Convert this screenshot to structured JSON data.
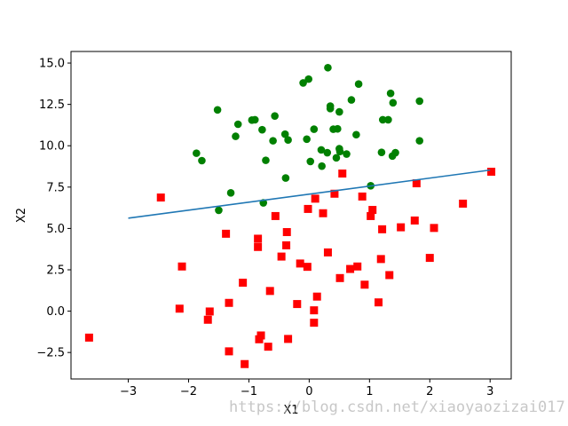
{
  "chart_data": {
    "type": "scatter",
    "xlabel": "X1",
    "ylabel": "X2",
    "xlim": [
      -3.95,
      3.35
    ],
    "ylim": [
      -4.1,
      15.7
    ],
    "xticks": [
      -3,
      -2,
      -1,
      0,
      1,
      2,
      3
    ],
    "xtick_labels": [
      "−3",
      "−2",
      "−1",
      "0",
      "1",
      "2",
      "3"
    ],
    "yticks": [
      -2.5,
      0.0,
      2.5,
      5.0,
      7.5,
      10.0,
      12.5,
      15.0
    ],
    "ytick_labels": [
      "−2.5",
      "0.0",
      "2.5",
      "5.0",
      "7.5",
      "10.0",
      "12.5",
      "15.0"
    ],
    "grid": false,
    "series": [
      {
        "marker": "circle",
        "color": "#008000",
        "points": [
          [
            0.31,
            14.72
          ],
          [
            -0.1,
            13.8
          ],
          [
            -0.01,
            14.03
          ],
          [
            0.82,
            13.73
          ],
          [
            1.35,
            13.17
          ],
          [
            1.39,
            12.6
          ],
          [
            1.83,
            12.7
          ],
          [
            -1.52,
            12.17
          ],
          [
            0.35,
            12.4
          ],
          [
            0.35,
            12.25
          ],
          [
            0.5,
            12.05
          ],
          [
            0.7,
            12.77
          ],
          [
            -0.57,
            11.8
          ],
          [
            -0.95,
            11.55
          ],
          [
            -0.9,
            11.57
          ],
          [
            -1.18,
            11.3
          ],
          [
            1.22,
            11.57
          ],
          [
            1.31,
            11.57
          ],
          [
            0.08,
            11.0
          ],
          [
            0.47,
            11.02
          ],
          [
            0.4,
            11.0
          ],
          [
            -0.4,
            10.7
          ],
          [
            -0.78,
            10.97
          ],
          [
            -1.22,
            10.57
          ],
          [
            -0.6,
            10.3
          ],
          [
            -0.04,
            10.4
          ],
          [
            -0.35,
            10.35
          ],
          [
            0.78,
            10.67
          ],
          [
            1.83,
            10.3
          ],
          [
            0.5,
            9.82
          ],
          [
            0.51,
            9.65
          ],
          [
            0.2,
            9.75
          ],
          [
            0.3,
            9.58
          ],
          [
            0.62,
            9.5
          ],
          [
            0.45,
            9.27
          ],
          [
            1.2,
            9.6
          ],
          [
            1.43,
            9.58
          ],
          [
            1.38,
            9.38
          ],
          [
            -1.87,
            9.55
          ],
          [
            -1.78,
            9.1
          ],
          [
            -0.72,
            9.12
          ],
          [
            0.02,
            9.05
          ],
          [
            0.21,
            8.77
          ],
          [
            -0.39,
            8.05
          ],
          [
            1.02,
            7.58
          ],
          [
            -1.3,
            7.15
          ],
          [
            -0.76,
            6.55
          ],
          [
            -1.5,
            6.1
          ]
        ]
      },
      {
        "marker": "square",
        "color": "#ff0000",
        "points": [
          [
            3.02,
            8.43
          ],
          [
            0.55,
            8.32
          ],
          [
            -2.46,
            6.87
          ],
          [
            0.1,
            6.8
          ],
          [
            0.88,
            6.93
          ],
          [
            0.42,
            7.1
          ],
          [
            1.78,
            7.73
          ],
          [
            2.55,
            6.5
          ],
          [
            -0.02,
            6.18
          ],
          [
            0.23,
            5.92
          ],
          [
            1.05,
            6.12
          ],
          [
            1.02,
            5.75
          ],
          [
            -0.56,
            5.75
          ],
          [
            1.75,
            5.48
          ],
          [
            1.52,
            5.07
          ],
          [
            1.21,
            4.95
          ],
          [
            2.07,
            5.03
          ],
          [
            -1.38,
            4.68
          ],
          [
            -0.37,
            4.78
          ],
          [
            -0.85,
            4.38
          ],
          [
            -0.85,
            3.88
          ],
          [
            -0.38,
            3.98
          ],
          [
            0.31,
            3.55
          ],
          [
            -0.46,
            3.3
          ],
          [
            1.19,
            3.15
          ],
          [
            2.0,
            3.22
          ],
          [
            -2.11,
            2.7
          ],
          [
            -0.15,
            2.88
          ],
          [
            -0.03,
            2.68
          ],
          [
            0.8,
            2.7
          ],
          [
            0.68,
            2.55
          ],
          [
            1.33,
            2.18
          ],
          [
            0.51,
            2.0
          ],
          [
            -1.1,
            1.72
          ],
          [
            0.92,
            1.6
          ],
          [
            -0.65,
            1.22
          ],
          [
            0.13,
            0.88
          ],
          [
            1.15,
            0.53
          ],
          [
            -1.33,
            0.5
          ],
          [
            -0.2,
            0.43
          ],
          [
            -2.15,
            0.15
          ],
          [
            0.08,
            0.05
          ],
          [
            -1.65,
            -0.02
          ],
          [
            -1.68,
            -0.52
          ],
          [
            0.08,
            -0.7
          ],
          [
            -0.8,
            -1.47
          ],
          [
            -0.83,
            -1.7
          ],
          [
            -3.65,
            -1.6
          ],
          [
            -0.35,
            -1.68
          ],
          [
            -0.68,
            -2.15
          ],
          [
            -1.33,
            -2.43
          ],
          [
            -1.07,
            -3.2
          ]
        ]
      },
      {
        "type": "line",
        "color": "#1f77b4",
        "points": [
          [
            -3.0,
            5.62
          ],
          [
            3.0,
            8.53
          ]
        ]
      }
    ]
  },
  "watermark": "https://blog.csdn.net/xiaoyaozizai017"
}
